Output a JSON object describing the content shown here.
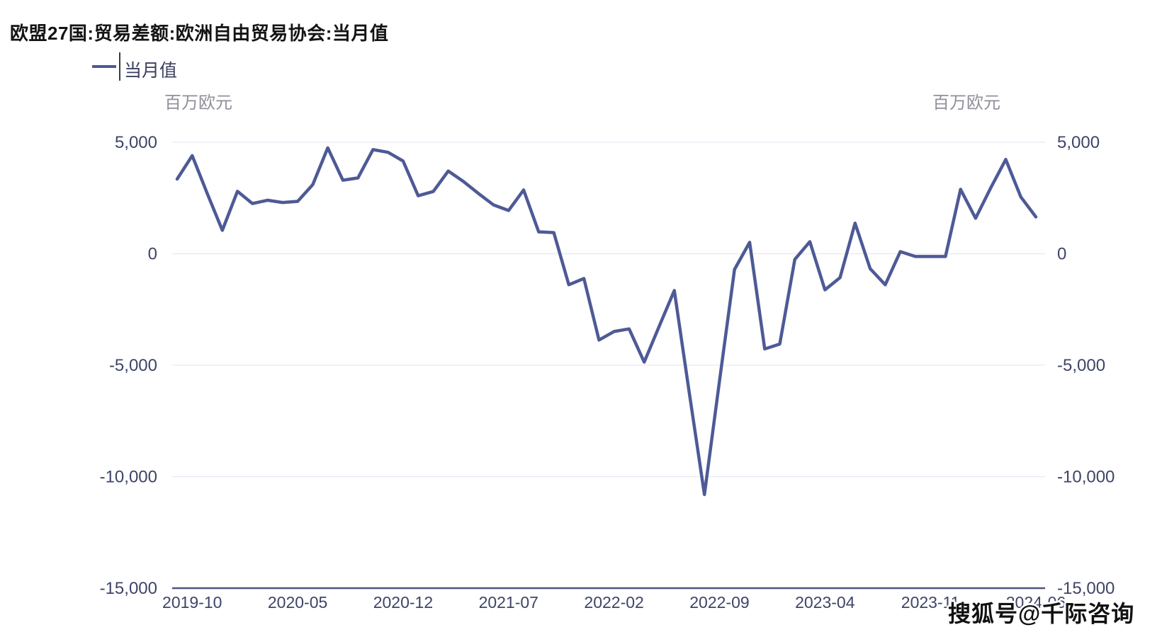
{
  "page": {
    "background": "#ffffff"
  },
  "header": {
    "title": "欧盟27国:贸易差额:欧洲自由贸易协会:当月值"
  },
  "legend": {
    "label": "当月值"
  },
  "axes": {
    "unit_left": "百万欧元",
    "unit_right": "百万欧元"
  },
  "watermark": {
    "text": "搜狐号@千际咨询"
  },
  "colors": {
    "line": "#4e5a96",
    "grid": "#e8e9f3",
    "axis": "#4d5680",
    "tick_text": "#3e4467",
    "unit_text": "#8f9099",
    "title_text": "#141414",
    "watermark_text": "#111111",
    "background": "#ffffff"
  },
  "chart_data": {
    "type": "line",
    "title": "欧盟27国:贸易差额:欧洲自由贸易协会:当月值",
    "ylabel": "百万欧元",
    "ylim": [
      -15000,
      5000
    ],
    "grid": true,
    "legend_position": "top-left",
    "x": [
      "2019-09",
      "2019-10",
      "2019-11",
      "2019-12",
      "2020-01",
      "2020-02",
      "2020-03",
      "2020-04",
      "2020-05",
      "2020-06",
      "2020-07",
      "2020-08",
      "2020-09",
      "2020-10",
      "2020-11",
      "2020-12",
      "2021-01",
      "2021-02",
      "2021-03",
      "2021-04",
      "2021-05",
      "2021-06",
      "2021-07",
      "2021-08",
      "2021-09",
      "2021-10",
      "2021-11",
      "2021-12",
      "2022-01",
      "2022-02",
      "2022-03",
      "2022-04",
      "2022-05",
      "2022-06",
      "2022-07",
      "2022-08",
      "2022-09",
      "2022-10",
      "2022-11",
      "2022-12",
      "2023-01",
      "2023-02",
      "2023-03",
      "2023-04",
      "2023-05",
      "2023-06",
      "2023-07",
      "2023-08",
      "2023-09",
      "2023-10",
      "2023-11",
      "2023-12",
      "2024-01",
      "2024-02",
      "2024-03",
      "2024-04",
      "2024-05",
      "2024-06"
    ],
    "series": [
      {
        "name": "当月值",
        "values": [
          3350,
          4400,
          2700,
          1050,
          2800,
          2250,
          2400,
          2300,
          2350,
          3100,
          4750,
          3300,
          3400,
          4670,
          4550,
          4160,
          2600,
          2790,
          3710,
          3240,
          2700,
          2190,
          1940,
          2860,
          980,
          950,
          -1390,
          -1110,
          -3870,
          -3490,
          -3370,
          -4860,
          -3250,
          -1650,
          -6250,
          -10800,
          -5700,
          -700,
          510,
          -4270,
          -4050,
          -250,
          540,
          -1620,
          -1070,
          1370,
          -670,
          -1390,
          95,
          -125,
          -125,
          -125,
          2890,
          1590,
          2950,
          4230,
          2550,
          1650
        ]
      }
    ],
    "x_tick_labels": [
      "2019-10",
      "2020-05",
      "2020-12",
      "2021-07",
      "2022-02",
      "2022-09",
      "2023-04",
      "2023-11",
      "2024-06"
    ],
    "x_tick_indices": [
      1,
      8,
      15,
      22,
      29,
      36,
      43,
      50,
      57
    ],
    "y_ticks": [
      5000,
      0,
      -5000,
      -10000,
      -15000
    ],
    "y_tick_labels": [
      "5,000",
      "0",
      "-5,000",
      "-10,000",
      "-15,000"
    ]
  }
}
